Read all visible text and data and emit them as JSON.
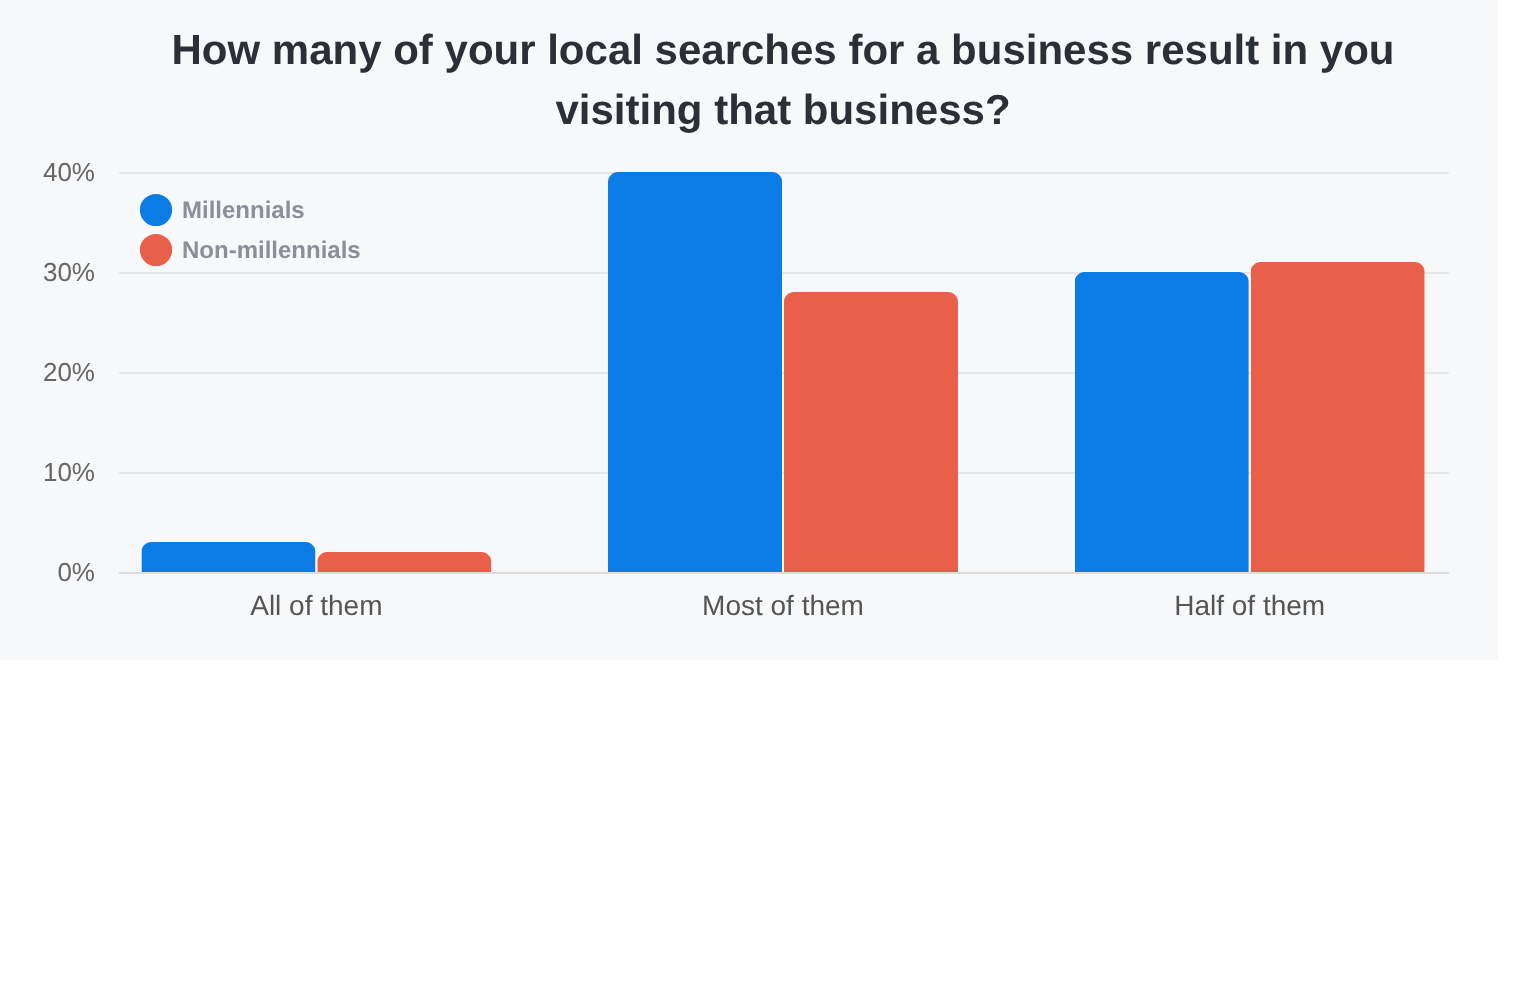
{
  "chart_data": {
    "type": "bar",
    "title": "How many of your local searches for a business result in you visiting that business?",
    "categories": [
      "All of them",
      "Most of them",
      "Half of them"
    ],
    "series": [
      {
        "name": "Millennials",
        "color": "#0b7be6",
        "values": [
          3,
          40,
          30
        ]
      },
      {
        "name": "Non-millennials",
        "color": "#e8604a",
        "values": [
          2,
          28,
          31
        ]
      }
    ],
    "ylim": [
      0,
      40
    ],
    "yticks": [
      {
        "value": 0,
        "label": "0%"
      },
      {
        "value": 10,
        "label": "10%"
      },
      {
        "value": 20,
        "label": "20%"
      },
      {
        "value": 30,
        "label": "30%"
      },
      {
        "value": 40,
        "label": "40%"
      }
    ],
    "grid": "y",
    "legend": "top left"
  }
}
